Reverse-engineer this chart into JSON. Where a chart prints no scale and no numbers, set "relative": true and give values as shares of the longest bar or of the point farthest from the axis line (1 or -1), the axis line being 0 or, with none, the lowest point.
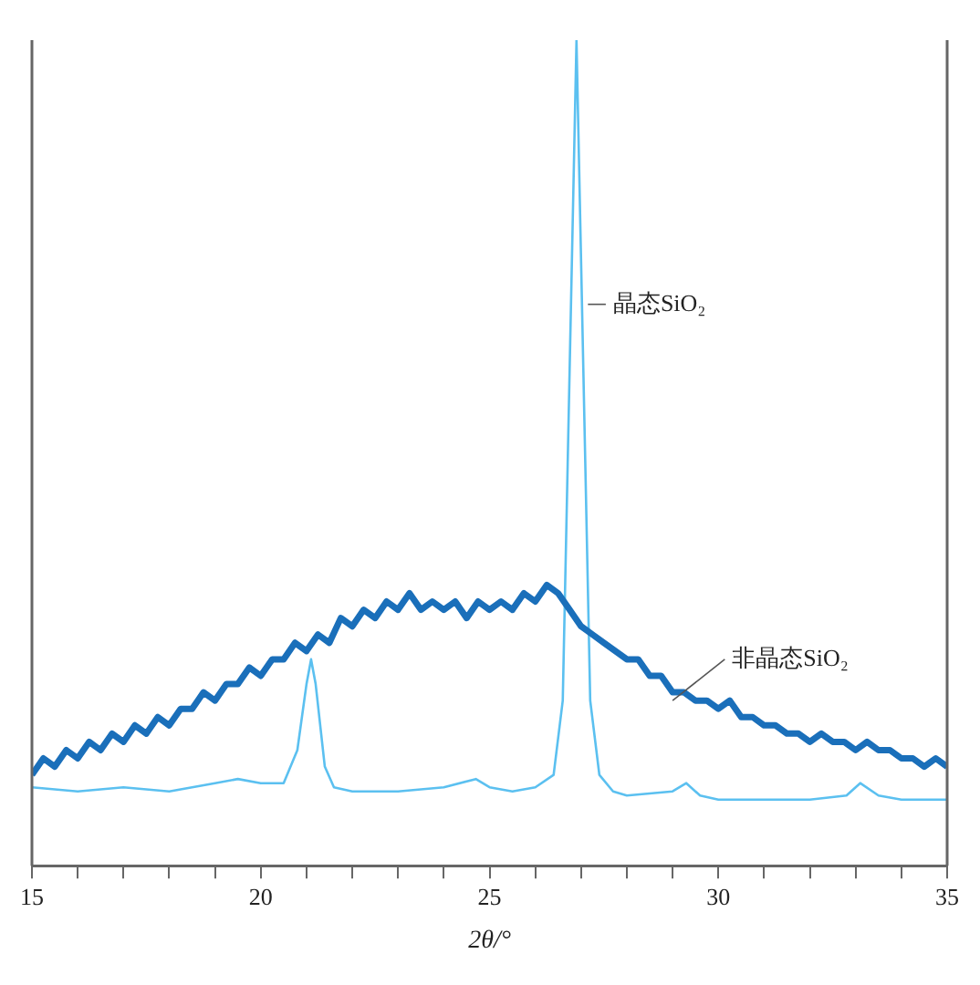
{
  "chart_data": {
    "type": "line",
    "xlabel": "2θ/°",
    "relative": true,
    "marker": "none",
    "grid": false,
    "legend": false,
    "tick_labels": "x",
    "xlim": [
      15,
      35
    ],
    "xticks": [
      15,
      {
        "value": 16,
        "label": null
      },
      {
        "value": 17,
        "label": null
      },
      {
        "value": 18,
        "label": null
      },
      {
        "value": 19,
        "label": null
      },
      20,
      {
        "value": 21,
        "label": null
      },
      {
        "value": 22,
        "label": null
      },
      {
        "value": 23,
        "label": null
      },
      {
        "value": 24,
        "label": null
      },
      25,
      {
        "value": 26,
        "label": null
      },
      {
        "value": 27,
        "label": null
      },
      {
        "value": 28,
        "label": null
      },
      {
        "value": 29,
        "label": null
      },
      30,
      {
        "value": 31,
        "label": null
      },
      {
        "value": 32,
        "label": null
      },
      {
        "value": 33,
        "label": null
      },
      {
        "value": 34,
        "label": null
      },
      35
    ],
    "series": [
      {
        "name": "非晶态SiO₂",
        "color": "#1a6fba",
        "x": [
          15,
          15.25,
          15.5,
          15.75,
          16,
          16.25,
          16.5,
          16.75,
          17,
          17.25,
          17.5,
          17.75,
          18,
          18.25,
          18.5,
          18.75,
          19,
          19.25,
          19.5,
          19.75,
          20,
          20.25,
          20.5,
          20.75,
          21,
          21.25,
          21.5,
          21.75,
          22,
          22.25,
          22.5,
          22.75,
          23,
          23.25,
          23.5,
          23.75,
          24,
          24.25,
          24.5,
          24.75,
          25,
          25.25,
          25.5,
          25.75,
          26,
          26.25,
          26.5,
          26.75,
          27,
          27.25,
          27.5,
          27.75,
          28,
          28.25,
          28.5,
          28.75,
          29,
          29.25,
          29.5,
          29.75,
          30,
          30.25,
          30.5,
          30.75,
          31,
          31.25,
          31.5,
          31.75,
          32,
          32.25,
          32.5,
          32.75,
          33,
          33.25,
          33.5,
          33.75,
          34,
          34.25,
          34.5,
          34.75,
          35
        ],
        "values": [
          0.11,
          0.13,
          0.12,
          0.14,
          0.13,
          0.15,
          0.14,
          0.16,
          0.15,
          0.17,
          0.16,
          0.18,
          0.17,
          0.19,
          0.19,
          0.21,
          0.2,
          0.22,
          0.22,
          0.24,
          0.23,
          0.25,
          0.25,
          0.27,
          0.26,
          0.28,
          0.27,
          0.3,
          0.29,
          0.31,
          0.3,
          0.32,
          0.31,
          0.33,
          0.31,
          0.32,
          0.31,
          0.32,
          0.3,
          0.32,
          0.31,
          0.32,
          0.31,
          0.33,
          0.32,
          0.34,
          0.33,
          0.31,
          0.29,
          0.28,
          0.27,
          0.26,
          0.25,
          0.25,
          0.23,
          0.23,
          0.21,
          0.21,
          0.2,
          0.2,
          0.19,
          0.2,
          0.18,
          0.18,
          0.17,
          0.17,
          0.16,
          0.16,
          0.15,
          0.16,
          0.15,
          0.15,
          0.14,
          0.15,
          0.14,
          0.14,
          0.13,
          0.13,
          0.12,
          0.13,
          0.12
        ]
      },
      {
        "name": "晶态SiO₂",
        "color": "#5bc0f0",
        "x": [
          15,
          16,
          17,
          18,
          19,
          19.5,
          20,
          20.5,
          20.8,
          21,
          21.1,
          21.2,
          21.4,
          21.6,
          22,
          23,
          24,
          24.7,
          25,
          25.5,
          26,
          26.4,
          26.6,
          26.75,
          26.9,
          27.05,
          27.2,
          27.4,
          27.7,
          28,
          29,
          29.3,
          29.6,
          30,
          31,
          32,
          32.8,
          33.1,
          33.5,
          34,
          35
        ],
        "values": [
          0.095,
          0.09,
          0.095,
          0.09,
          0.1,
          0.105,
          0.1,
          0.1,
          0.14,
          0.22,
          0.25,
          0.22,
          0.12,
          0.095,
          0.09,
          0.09,
          0.095,
          0.105,
          0.095,
          0.09,
          0.095,
          0.11,
          0.2,
          0.6,
          1,
          0.6,
          0.2,
          0.11,
          0.09,
          0.085,
          0.09,
          0.1,
          0.085,
          0.08,
          0.08,
          0.08,
          0.085,
          0.1,
          0.085,
          0.08,
          0.08
        ]
      }
    ]
  }
}
